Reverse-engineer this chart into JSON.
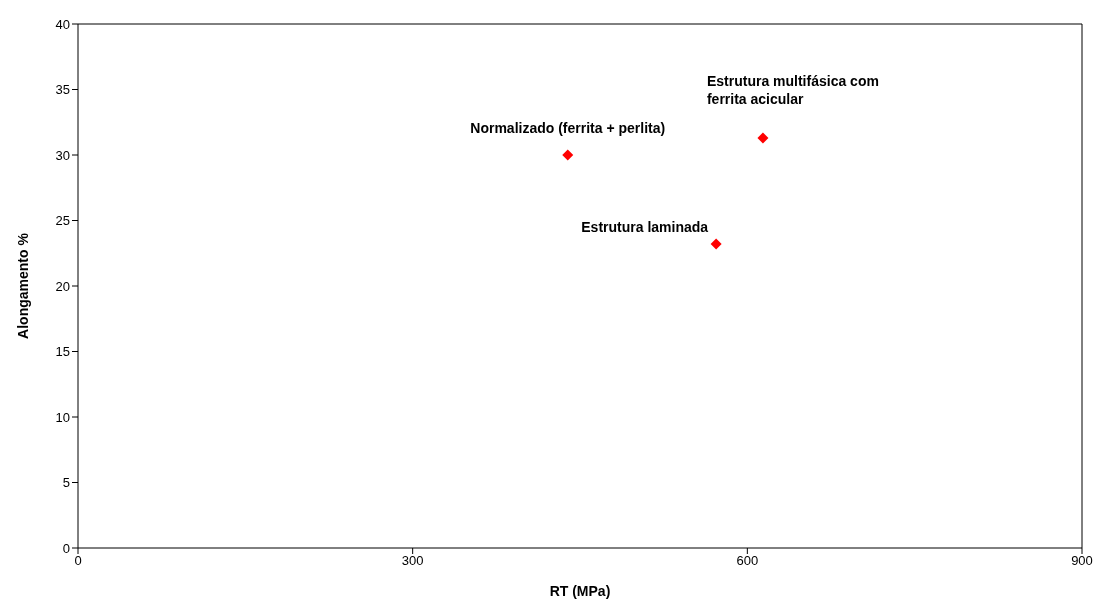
{
  "chart_data": {
    "type": "scatter",
    "xlabel": "RT (MPa)",
    "ylabel": "Alongamento %",
    "x": [
      439,
      572,
      614
    ],
    "series": [
      {
        "color": "#ff0000",
        "values": [
          30,
          23.2,
          31.3
        ]
      }
    ],
    "xlim": [
      0,
      900
    ],
    "xticks": [
      0,
      300,
      600,
      900
    ],
    "ylim": [
      0,
      40
    ],
    "yticks": [
      0,
      5,
      10,
      15,
      20,
      25,
      30,
      35,
      40
    ],
    "grid": false,
    "legend": false,
    "marker": "diamond",
    "annotations": [
      {
        "text": "Normalizado (ferrita + perlita)",
        "x": 439,
        "y": 30
      },
      {
        "text": "Estrutura laminada",
        "x": 572,
        "y": 23.2
      },
      {
        "text": "Estrutura multifásica com ferrita acicular",
        "x": 614,
        "y": 31.3
      }
    ]
  }
}
